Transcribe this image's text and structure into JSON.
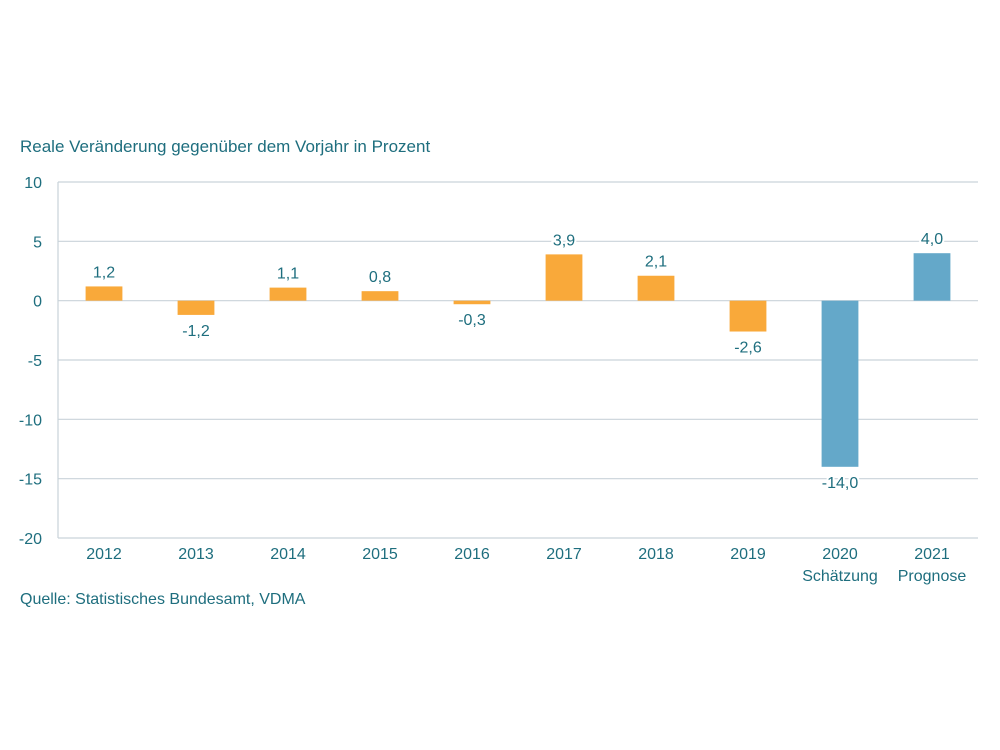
{
  "chart_data": {
    "type": "bar",
    "ylabel": "Reale Veränderung gegenüber dem Vorjahr in Prozent",
    "categories": [
      "2012",
      "2013",
      "2014",
      "2015",
      "2016",
      "2017",
      "2018",
      "2019",
      "2020",
      "2021"
    ],
    "category_sublabels": [
      "",
      "",
      "",
      "",
      "",
      "",
      "",
      "",
      "Schätzung",
      "Prognose"
    ],
    "values": [
      1.2,
      -1.2,
      1.1,
      0.8,
      -0.3,
      3.9,
      2.1,
      -2.6,
      -14.0,
      4.0
    ],
    "value_labels": [
      "1,2",
      "-1,2",
      "1,1",
      "0,8",
      "-0,3",
      "3,9",
      "2,1",
      "-2,6",
      "-14,0",
      "4,0"
    ],
    "ylim": [
      -20,
      10
    ],
    "yticks": [
      10,
      5,
      0,
      -5,
      -10,
      -15,
      -20
    ],
    "grid": true,
    "colors": {
      "actual": "#f9a93a",
      "estimate": "#64a8c9",
      "text": "#1e6e7e",
      "grid": "#c9d3d9"
    },
    "bar_kinds": [
      "actual",
      "actual",
      "actual",
      "actual",
      "actual",
      "actual",
      "actual",
      "actual",
      "estimate",
      "estimate"
    ],
    "source": "Quelle: Statistisches Bundesamt, VDMA"
  }
}
